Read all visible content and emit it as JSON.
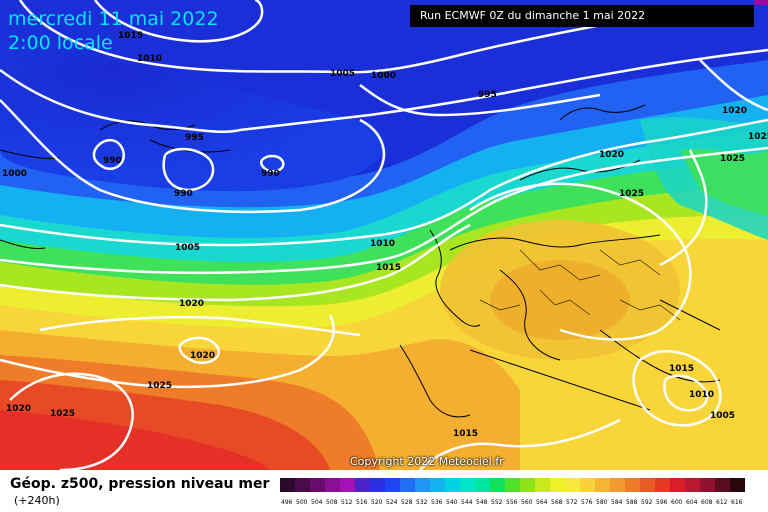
{
  "header": {
    "date": "mercredi 11 mai 2022",
    "time": "2:00 locale",
    "run": "Run ECMWF 0Z du dimanche 1 mai 2022"
  },
  "map": {
    "isobar_labels": [
      {
        "id": "iso-1015-tl",
        "text": "1015"
      },
      {
        "id": "iso-1010-tl",
        "text": "1010"
      },
      {
        "id": "iso-1005-top",
        "text": "1005"
      },
      {
        "id": "iso-1000-top",
        "text": "1000"
      },
      {
        "id": "iso-995-top",
        "text": "995"
      },
      {
        "id": "iso-995-mid",
        "text": "995"
      },
      {
        "id": "iso-990-a",
        "text": "990"
      },
      {
        "id": "iso-990-b",
        "text": "990"
      },
      {
        "id": "iso-990-c",
        "text": "990"
      },
      {
        "id": "iso-1000-left",
        "text": "1000"
      },
      {
        "id": "iso-1005-mid",
        "text": "1005"
      },
      {
        "id": "iso-1010-mid",
        "text": "1010"
      },
      {
        "id": "iso-1015-mid",
        "text": "1015"
      },
      {
        "id": "iso-1020-mid",
        "text": "1020"
      },
      {
        "id": "iso-1020-low",
        "text": "1020"
      },
      {
        "id": "iso-1025-low",
        "text": "1025"
      },
      {
        "id": "iso-1020-sw",
        "text": "1020"
      },
      {
        "id": "iso-1025-sw",
        "text": "1025"
      },
      {
        "id": "iso-1020-ne",
        "text": "1020"
      },
      {
        "id": "iso-1025-ne",
        "text": "1025"
      },
      {
        "id": "iso-1025-ne2",
        "text": "1025"
      },
      {
        "id": "iso-1020-n",
        "text": "1020"
      },
      {
        "id": "iso-1025-eu",
        "text": "1025"
      },
      {
        "id": "iso-1015-se",
        "text": "1015"
      },
      {
        "id": "iso-1010-se",
        "text": "1010"
      },
      {
        "id": "iso-1005-se",
        "text": "1005"
      },
      {
        "id": "iso-1015-s",
        "text": "1015"
      }
    ],
    "copyright": "Copyright 2022 Meteociel.fr"
  },
  "footer": {
    "title": "Géop. z500, pression niveau mer",
    "subtitle": "(+240h)"
  },
  "scale": {
    "values": [
      "496",
      "500",
      "504",
      "508",
      "512",
      "516",
      "520",
      "524",
      "528",
      "532",
      "536",
      "540",
      "544",
      "548",
      "552",
      "556",
      "560",
      "564",
      "568",
      "572",
      "576",
      "580",
      "584",
      "588",
      "592",
      "596",
      "600",
      "604",
      "608",
      "612",
      "616"
    ],
    "colors": [
      "#2a0a2a",
      "#4b0b4b",
      "#6a0a6e",
      "#8a0e96",
      "#a412b6",
      "#4b23c8",
      "#2a2fe0",
      "#1f46f0",
      "#1f6ef5",
      "#1f96f5",
      "#14b4f0",
      "#00d2e6",
      "#00e6c8",
      "#00e6a0",
      "#10e05a",
      "#50e22a",
      "#8ee21a",
      "#c8ea1c",
      "#eef02a",
      "#f6e83c",
      "#f8d23a",
      "#f6b434",
      "#f29a2e",
      "#ee7a28",
      "#ea5a24",
      "#e53a22",
      "#d81e28",
      "#b81830",
      "#901230",
      "#5a0c20",
      "#2a0810"
    ]
  },
  "colors": {
    "deep_blue": "#1a30d8",
    "blue": "#2a60f0",
    "cyan": "#12bcf0",
    "green": "#40e060",
    "yellow": "#f2ec3a",
    "orange": "#f6b030",
    "red": "#e84030"
  }
}
